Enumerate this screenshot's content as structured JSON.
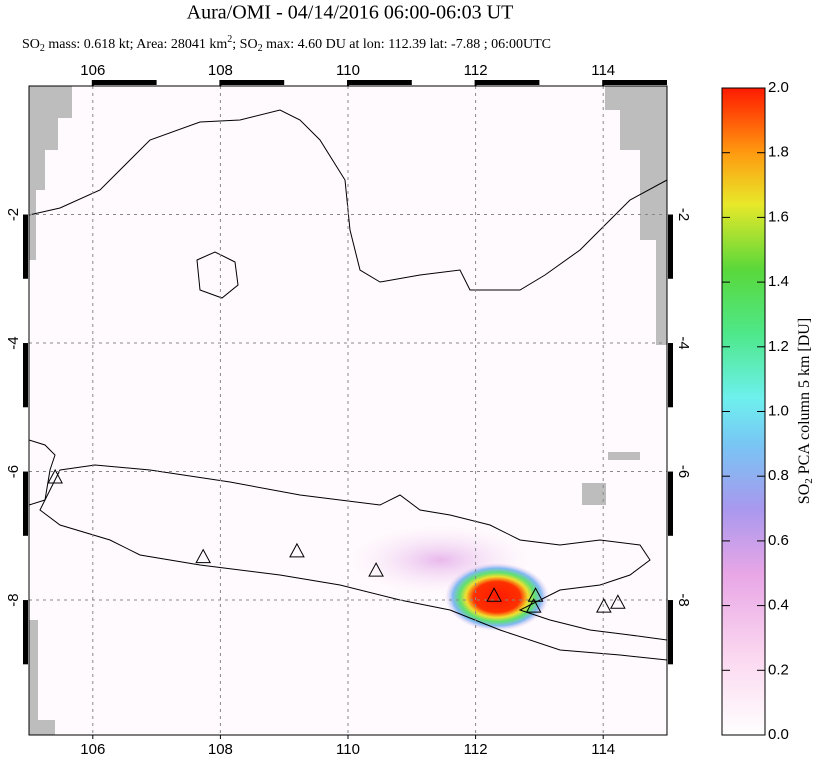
{
  "chart_data": {
    "type": "map",
    "title": "Aura/OMI - 04/14/2016 06:00-06:03 UT",
    "subtitle": [
      "SO",
      "2",
      " mass: 0.618 kt; Area: 28041 km",
      "2",
      "; SO",
      "2",
      " max: 4.60 DU at lon: 112.39 lat: -7.88 ; 06:00UTC"
    ],
    "xlim": [
      105,
      115
    ],
    "xticks": [
      106,
      108,
      110,
      112,
      114
    ],
    "ylim": [
      -10.1,
      0
    ],
    "yticks": [
      -2,
      -4,
      -6,
      -8
    ],
    "grid": true,
    "colorbar": {
      "label": [
        "SO",
        "2",
        " PCA column 5 km [DU]"
      ],
      "lim": [
        0,
        2
      ],
      "ticks": [
        {
          "value": 0,
          "label": "0.0"
        },
        {
          "value": 0.2,
          "label": "0.2"
        },
        {
          "value": 0.4,
          "label": "0.4"
        },
        {
          "value": 0.6,
          "label": "0.6"
        },
        {
          "value": 0.8,
          "label": "0.8"
        },
        {
          "value": 1,
          "label": "1.0"
        },
        {
          "value": 1.2,
          "label": "1.2"
        },
        {
          "value": 1.4,
          "label": "1.4"
        },
        {
          "value": 1.6,
          "label": "1.6"
        },
        {
          "value": 1.8,
          "label": "1.8"
        },
        {
          "value": 2,
          "label": "2.0"
        }
      ]
    },
    "volcanoes": [
      {
        "lon": 105.41,
        "lat": -6.1
      },
      {
        "lon": 107.73,
        "lat": -7.34
      },
      {
        "lon": 109.2,
        "lat": -7.25
      },
      {
        "lon": 110.44,
        "lat": -7.55
      },
      {
        "lon": 112.29,
        "lat": -7.94
      },
      {
        "lon": 112.94,
        "lat": -7.94
      },
      {
        "lon": 112.91,
        "lat": -8.11
      },
      {
        "lon": 114.01,
        "lat": -8.11
      },
      {
        "lon": 114.23,
        "lat": -8.05
      }
    ]
  }
}
